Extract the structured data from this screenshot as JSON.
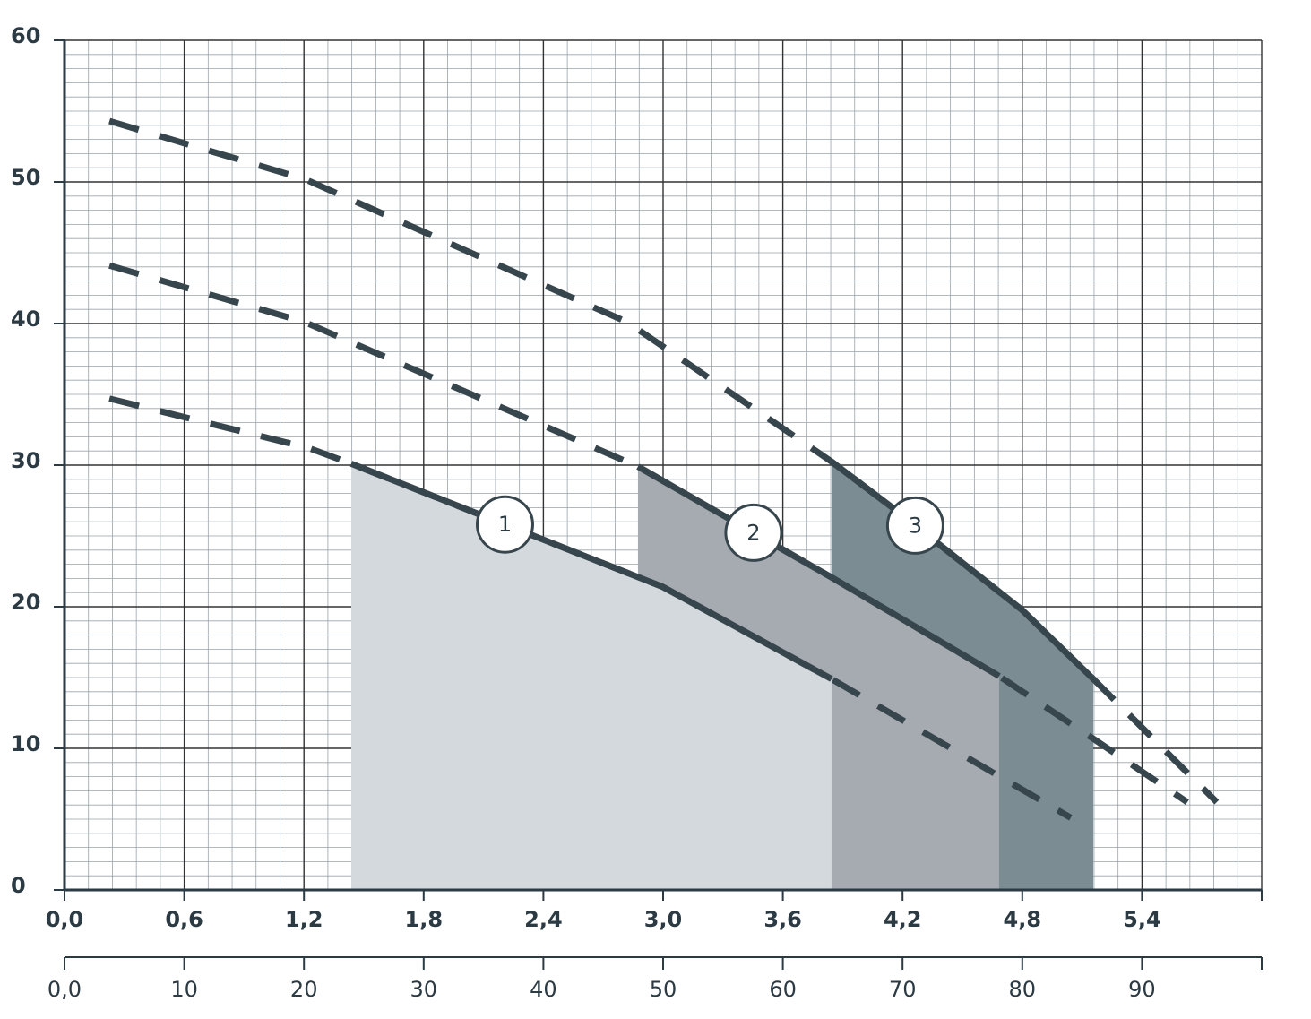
{
  "chart_data": {
    "type": "line",
    "xlim": [
      0,
      6
    ],
    "xticks": [
      {
        "value": 0,
        "label": "0,0"
      },
      {
        "value": 0.6,
        "label": "0,6"
      },
      {
        "value": 1.2,
        "label": "1,2"
      },
      {
        "value": 1.8,
        "label": "1,8"
      },
      {
        "value": 2.4,
        "label": "2,4"
      },
      {
        "value": 3.0,
        "label": "3,0"
      },
      {
        "value": 3.6,
        "label": "3,6"
      },
      {
        "value": 4.2,
        "label": "4,2"
      },
      {
        "value": 4.8,
        "label": "4,8"
      },
      {
        "value": 5.4,
        "label": "5,4"
      }
    ],
    "x2lim": [
      0,
      100
    ],
    "x2ticks": [
      {
        "value": 0,
        "label": "0,0"
      },
      10,
      20,
      30,
      40,
      50,
      60,
      70,
      80,
      90
    ],
    "ylim": [
      0,
      60
    ],
    "yticks": [
      0,
      10,
      20,
      30,
      40,
      50,
      60
    ],
    "grid": true,
    "series": [
      {
        "name": "3",
        "color": "#37454d",
        "fill": "#7b8c92",
        "x": [
          0.225,
          1.204,
          2.82,
          3.844,
          4.168,
          4.797,
          5.156,
          5.775
        ],
        "values": [
          54.3,
          50.2,
          40.1,
          30.25,
          26.8,
          19.8,
          14.9,
          6.2
        ],
        "operating_range": [
          3.844,
          5.156
        ]
      },
      {
        "name": "2",
        "color": "#37454d",
        "fill": "#a6aab1",
        "x": [
          0.225,
          1.204,
          2.874,
          3.853,
          4.684,
          5.133,
          5.627
        ],
        "values": [
          44.1,
          40.1,
          29.9,
          22.0,
          15.1,
          10.9,
          6.2
        ],
        "operating_range": [
          2.874,
          4.684
        ]
      },
      {
        "name": "1",
        "color": "#37454d",
        "fill": "#d4d9dd",
        "x": [
          0.225,
          1.226,
          1.437,
          2.999,
          3.844,
          5.043
        ],
        "values": [
          34.7,
          31.2,
          30.1,
          21.4,
          14.9,
          5.1
        ],
        "operating_range": [
          1.437,
          3.844
        ]
      }
    ]
  }
}
